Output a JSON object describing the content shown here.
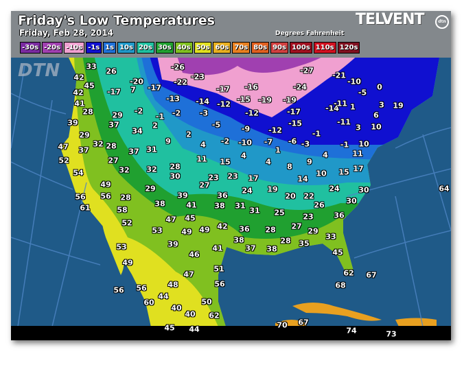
{
  "header": {
    "title": "Friday's Low Temperatures",
    "subtitle": "Friday, Feb 28, 2014",
    "units": "Degrees Fahrenheit",
    "brand": "TELVENT",
    "brand_badge": "dtn",
    "watermark": "DTN"
  },
  "legend": [
    {
      "label": "-30s",
      "color": "#7a2aa0"
    },
    {
      "label": "-20s",
      "color": "#a040b0"
    },
    {
      "label": "-10s",
      "color": "#f0a0d0"
    },
    {
      "label": "-1s",
      "color": "#1010d0"
    },
    {
      "label": "1s",
      "color": "#1e70d8"
    },
    {
      "label": "10s",
      "color": "#2098c8"
    },
    {
      "label": "20s",
      "color": "#20c0a0"
    },
    {
      "label": "30s",
      "color": "#20a030"
    },
    {
      "label": "40s",
      "color": "#80c020"
    },
    {
      "label": "50s",
      "color": "#e0e020"
    },
    {
      "label": "60s",
      "color": "#e8b020"
    },
    {
      "label": "70s",
      "color": "#e88020"
    },
    {
      "label": "80s",
      "color": "#e06020"
    },
    {
      "label": "90s",
      "color": "#d04040"
    },
    {
      "label": "100s",
      "color": "#a01020"
    },
    {
      "label": "110s",
      "color": "#d01020"
    },
    {
      "label": "120s",
      "color": "#801020"
    }
  ],
  "temperature_labels": [
    "33",
    "26",
    "42",
    "45",
    "-20",
    "7",
    "-17",
    "-26",
    "-23",
    "-22",
    "42",
    "-17",
    "-13",
    "-14",
    "-12",
    "-17",
    "-16",
    "-27",
    "-21",
    "-10",
    "-24",
    "-5",
    "0",
    "41",
    "28",
    "29",
    "-2",
    "-1",
    "-2",
    "-3",
    "-15",
    "-19",
    "-19",
    "-12",
    "-17",
    "-14",
    "-11",
    "1",
    "3",
    "19",
    "39",
    "37",
    "34",
    "2",
    "-5",
    "-9",
    "-15",
    "-11",
    "3",
    "6",
    "10",
    "29",
    "32",
    "28",
    "37",
    "31",
    "9",
    "2",
    "4",
    "-2",
    "-10",
    "-12",
    "-7",
    "1",
    "-6",
    "-3",
    "-1",
    "-1",
    "10",
    "11",
    "47",
    "37",
    "52",
    "27",
    "32",
    "32",
    "28",
    "30",
    "11",
    "15",
    "4",
    "4",
    "8",
    "9",
    "4",
    "10",
    "15",
    "17",
    "54",
    "23",
    "23",
    "27",
    "17",
    "14",
    "49",
    "29",
    "36",
    "24",
    "19",
    "20",
    "22",
    "24",
    "30",
    "64",
    "56",
    "56",
    "28",
    "39",
    "61",
    "58",
    "38",
    "41",
    "38",
    "31",
    "31",
    "25",
    "26",
    "30",
    "36",
    "52",
    "47",
    "45",
    "53",
    "49",
    "49",
    "42",
    "36",
    "28",
    "23",
    "27",
    "29",
    "33",
    "39",
    "38",
    "53",
    "41",
    "37",
    "38",
    "28",
    "35",
    "45",
    "46",
    "49",
    "51",
    "62",
    "67",
    "47",
    "48",
    "56",
    "68",
    "56",
    "56",
    "44",
    "60",
    "40",
    "40",
    "50",
    "62",
    "70",
    "67",
    "74",
    "73",
    "45",
    "44"
  ]
}
